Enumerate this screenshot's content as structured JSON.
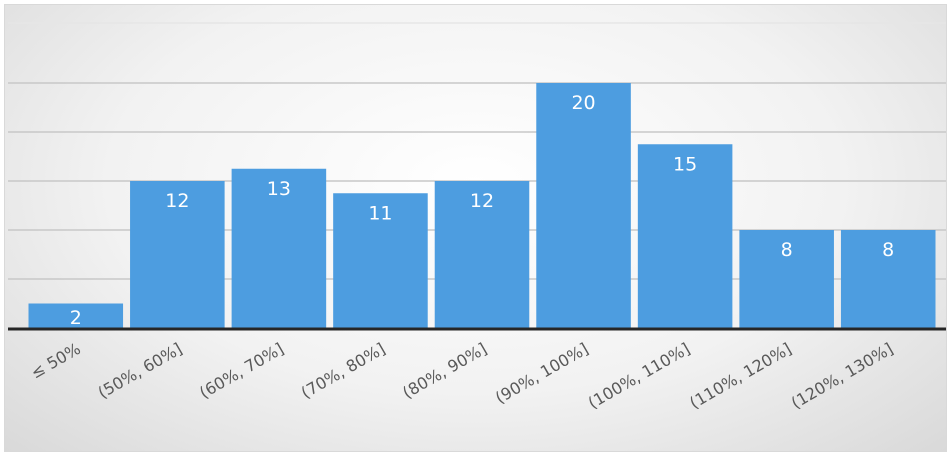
{
  "chart_data": {
    "type": "bar",
    "categories": [
      "≤ 50%",
      "(50%, 60%]",
      "(60%, 70%]",
      "(70%, 80%]",
      "(80%, 90%]",
      "(90%, 100%]",
      "(100%, 110%]",
      "(110%, 120%]",
      "(120%, 130%]"
    ],
    "values": [
      2,
      12,
      13,
      11,
      12,
      20,
      15,
      8,
      8
    ],
    "title": "",
    "xlabel": "",
    "ylabel": "",
    "ylim": [
      0,
      20
    ],
    "grid": true,
    "legend": "none",
    "data_labels": true,
    "colors": {
      "bar": "#4d9de0",
      "grid": "#c8c8c8",
      "axis": "#262626",
      "label": "#ffffff",
      "tick": "#595959"
    }
  }
}
